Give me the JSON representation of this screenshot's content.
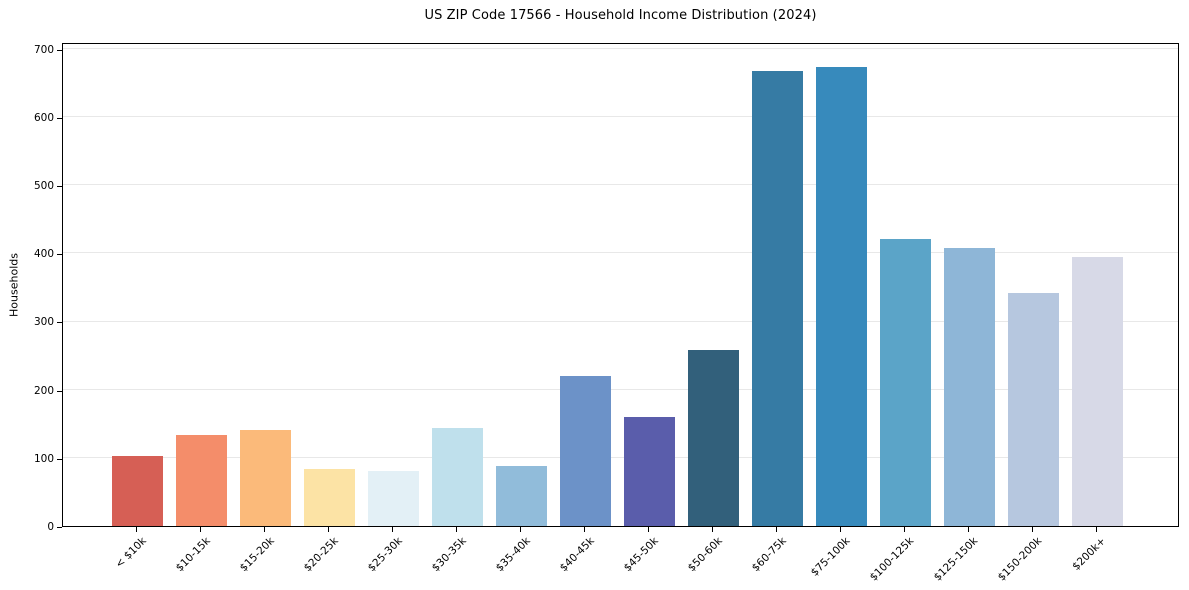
{
  "chart_data": {
    "type": "bar",
    "title": "US ZIP Code 17566 - Household Income Distribution (2024)",
    "xlabel": "",
    "ylabel": "Households",
    "categories": [
      "< $10k",
      "$10-15k",
      "$15-20k",
      "$20-25k",
      "$25-30k",
      "$30-35k",
      "$35-40k",
      "$40-45k",
      "$45-50k",
      "$50-60k",
      "$60-75k",
      "$75-100k",
      "$100-125k",
      "$125-150k",
      "$150-200k",
      "$200k+"
    ],
    "values": [
      103,
      134,
      141,
      84,
      81,
      144,
      88,
      220,
      160,
      258,
      668,
      674,
      421,
      408,
      342,
      395
    ],
    "bar_colors": [
      "#d65f55",
      "#f48d6a",
      "#fbba7a",
      "#fce3a5",
      "#e3f0f6",
      "#bfe0ec",
      "#91bcda",
      "#6c92c8",
      "#5a5dab",
      "#32607b",
      "#367ba4",
      "#378abc",
      "#5ba4c8",
      "#8eb6d7",
      "#b6c7df",
      "#d7d9e7"
    ],
    "ylim": [
      0,
      710
    ],
    "yticks": [
      0,
      100,
      200,
      300,
      400,
      500,
      600,
      700
    ],
    "grid": "horizontal",
    "legend": "none",
    "background_color": "#ffffff",
    "grid_color": "#e8e8e8",
    "spine_color": "#000000",
    "tick_color": "#000000"
  }
}
